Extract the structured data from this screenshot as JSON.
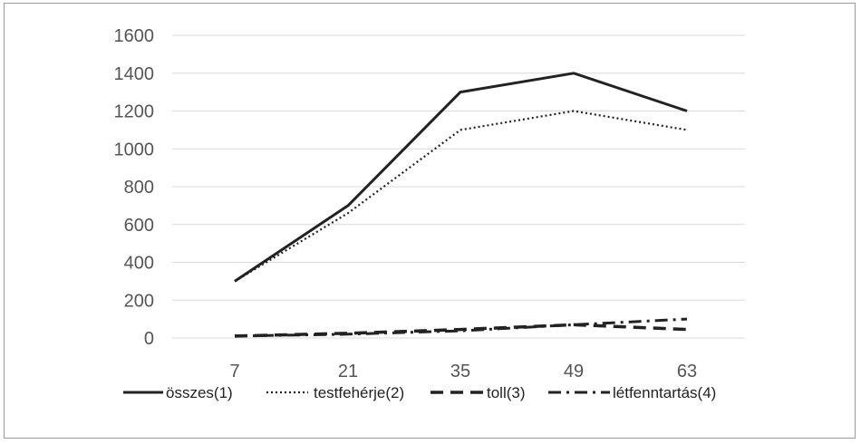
{
  "chart_data": {
    "type": "line",
    "title": "",
    "xlabel": "",
    "ylabel": "",
    "x": [
      7,
      21,
      35,
      49,
      63
    ],
    "ylim": [
      0,
      1600
    ],
    "yticks": [
      0,
      200,
      400,
      600,
      800,
      1000,
      1200,
      1400,
      1600
    ],
    "grid": true,
    "legend_position": "bottom",
    "series": [
      {
        "name": "összes(1)",
        "values": [
          300,
          700,
          1300,
          1400,
          1200
        ],
        "dash": "solid"
      },
      {
        "name": "testfehérje(2)",
        "values": [
          300,
          660,
          1100,
          1200,
          1100
        ],
        "dash": "dotted"
      },
      {
        "name": "toll(3)",
        "values": [
          10,
          25,
          45,
          70,
          45
        ],
        "dash": "dashed"
      },
      {
        "name": "létfenntartás(4)",
        "values": [
          10,
          20,
          38,
          70,
          100
        ],
        "dash": "dashdot"
      }
    ],
    "colors": {
      "line": "#222222",
      "grid": "#d9d9d9",
      "text": "#555555"
    }
  }
}
